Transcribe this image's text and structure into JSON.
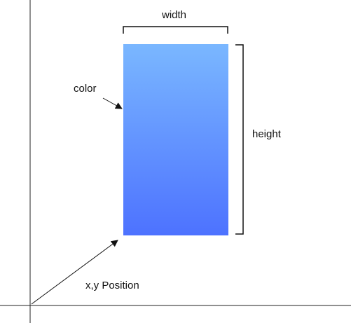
{
  "labels": {
    "width": "width",
    "height": "height",
    "color": "color",
    "position": "x,y Position"
  },
  "colors": {
    "rect_top": "#7ab7ff",
    "rect_bottom": "#4d72ff",
    "stroke": "#222222"
  }
}
